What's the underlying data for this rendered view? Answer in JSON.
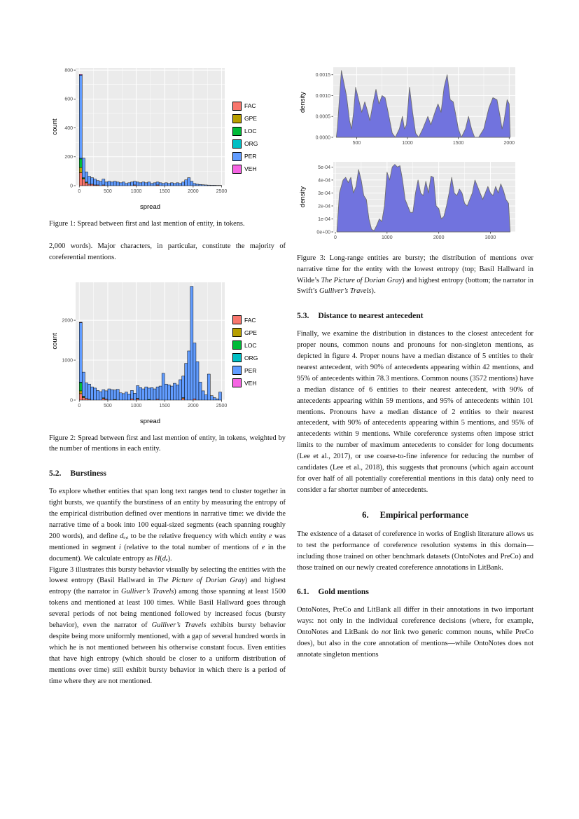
{
  "colors": {
    "FAC": "#F8766D",
    "GPE": "#B79F00",
    "LOC": "#00BA38",
    "ORG": "#00BFC4",
    "PER": "#619CFF",
    "VEH": "#F564E3",
    "panel": "#EBEBEB",
    "grid": "#FFFFFF",
    "density_fill": "#7173DE",
    "density_stroke": "#6E6E6E",
    "tick_label": "#4D4D4D",
    "axis_title": "#000000"
  },
  "captions": {
    "fig1": "Figure 1:  Spread between first and last mention of entity, in tokens.",
    "fig2": "Figure 2:  Spread between first and last mention of entity, in tokens, weighted by the number of mentions in each entity.",
    "fig3": "Figure 3:  Long-range entities are bursty; the distribution of mentions over narrative time for the entity with the lowest entropy (top; Basil Hallward in Wilde’s *The Picture of Dorian Gray*) and highest entropy (bottom; the narrator in Swift’s *Gulliver’s Travels*)."
  },
  "sections": {
    "s51_cont": "2,000 words).  Major characters, in particular, constitute the majority of coreferential mentions.",
    "s52_num": "5.2.",
    "s52_title": "Burstiness",
    "s52_p1": "To explore whether entities that span long text ranges tend to cluster together in tight bursts, we quantify the burstiness of an entity by measuring the entropy of the empirical distribution defined over mentions in narrative time: we divide the narrative time of a book into 100 equal-sized segments (each spanning roughly 200 words), and define *d*ₑ,ᵢ to be the relative frequency with which entity *e* was mentioned in segment *i* (relative to the total number of mentions of *e* in the document). We calculate entropy as *H*(*d*ₑ).",
    "s52_p2": "Figure 3 illustrates this bursty behavior visually by selecting the entities with the lowest entropy (Basil Hallward in *The Picture of Dorian Gray*) and highest entropy (the narrator in *Gulliver’s Travels*) among those spanning at least 1500 tokens and mentioned at least 100 times.  While Basil Hallward goes through several periods of not being mentioned followed by increased focus (bursty behavior), even the narrator of *Gulliver’s Travels* exhibits bursty behavior despite being more uniformly mentioned, with a gap of several hundred words in which he is not mentioned between his otherwise constant focus.  Even entities that have high entropy (which should be closer to a uniform distribution of mentions over time) still exhibit bursty behavior in which there is a period of time where they are not mentioned.",
    "s53_num": "5.3.",
    "s53_title": "Distance to nearest antecedent",
    "s53_p1": "Finally, we examine the distribution in distances to the closest antecedent for proper nouns, common nouns and pronouns for non-singleton mentions, as depicted in figure 4.  Proper nouns have a median distance of 5 entities to their nearest antecedent, with 90% of antecedents appearing within 42 mentions, and 95% of antecedents within 78.3 mentions. Common nouns (3572 mentions) have a median distance of 6 entities to their nearest antecedent, with 90% of antecedents appearing within 59 mentions, and 95% of antecedents within 101 mentions. Pronouns have a median distance of 2 entities to their nearest antecedent, with 90% of antecedents appearing within 5 mentions, and 95% of antecedents within 9 mentions. While coreference systems often impose strict limits to the number of maximum antecedents to consider for long documents (Lee et al., 2017), or use coarse-to-fine inference for reducing the number of candidates (Lee et al., 2018), this suggests that pronouns (which again account for over half of all potentially coreferential mentions in this data) only need to consider a far shorter number of antecedents.",
    "s6_num": "6.",
    "s6_title": "Empirical performance",
    "s6_p1": "The existence of a dataset of coreference in works of English literature allows us to test the performance of coreference resolution systems in this domain—including those trained on other benchmark datasets (OntoNotes and PreCo) and those trained on our newly created coreference annotations in LitBank.",
    "s61_num": "6.1.",
    "s61_title": "Gold mentions",
    "s61_p1": "OntoNotes, PreCo and LitBank all differ in their annotations in two important ways:  not only in the individual coreference decisions (where, for example, OntoNotes and LitBank do *not* link two generic common nouns, while PreCo does), but also in the core annotation of mentions—while OntoNotes does not annotate singleton mentions"
  },
  "chart_data": [
    {
      "type": "bar",
      "stacked": true,
      "title": "",
      "xlabel": "spread",
      "ylabel": "count",
      "bin_width": 50,
      "xlim": [
        -65,
        2555
      ],
      "ylim": [
        0,
        815
      ],
      "xticks": [
        0,
        500,
        1000,
        1500,
        2000,
        2500
      ],
      "yticks": [
        0,
        200,
        400,
        600,
        800
      ],
      "legend": [
        "FAC",
        "GPE",
        "LOC",
        "ORG",
        "PER",
        "VEH"
      ],
      "legend_position": "right",
      "grid": true,
      "stack_order": [
        "FAC",
        "GPE",
        "LOC",
        "ORG",
        "PER",
        "VEH"
      ],
      "series": {
        "FAC": {
          "0": 90,
          "1": 45,
          "2": 20,
          "3": 10,
          "4": 10,
          "5": 5,
          "6": 5,
          "8": 5,
          "19": 5,
          "27": 5
        },
        "GPE": {
          "0": 35,
          "1": 5,
          "2": 5
        },
        "LOC": {
          "0": 60,
          "1": 5
        },
        "ORG": {
          "0": 5
        },
        "PER": [
          575,
          135,
          70,
          55,
          45,
          40,
          30,
          30,
          40,
          25,
          30,
          25,
          30,
          25,
          20,
          25,
          15,
          20,
          25,
          25,
          25,
          20,
          25,
          20,
          25,
          15,
          20,
          20,
          20,
          15,
          20,
          15,
          20,
          15,
          20,
          15,
          25,
          40,
          55,
          30,
          15,
          10,
          8,
          6,
          5,
          4,
          3,
          3,
          2,
          2
        ],
        "VEH": {
          "0": 5
        }
      }
    },
    {
      "type": "bar",
      "stacked": true,
      "title": "",
      "xlabel": "spread",
      "ylabel": "count",
      "bin_width": 50,
      "xlim": [
        -65,
        2555
      ],
      "ylim": [
        0,
        2950
      ],
      "xticks": [
        0,
        500,
        1000,
        1500,
        2000,
        2500
      ],
      "yticks": [
        0,
        1000,
        2000
      ],
      "legend": [
        "FAC",
        "GPE",
        "LOC",
        "ORG",
        "PER",
        "VEH"
      ],
      "legend_position": "right",
      "grid": true,
      "stack_order": [
        "FAC",
        "GPE",
        "LOC",
        "ORG",
        "PER",
        "VEH"
      ],
      "series": {
        "FAC": {
          "0": 160,
          "1": 60,
          "2": 40,
          "3": 20,
          "8": 40,
          "9": 20,
          "18": 30,
          "20": 30,
          "27": 20,
          "36": 40,
          "40": 30
        },
        "GPE": {
          "0": 70,
          "1": 20,
          "12": 15,
          "36": 20
        },
        "LOC": {
          "0": 200,
          "1": 15,
          "8": 15,
          "24": 15
        },
        "ORG": {
          "0": 20,
          "20": 15
        },
        "PER": [
          1490,
          605,
          390,
          380,
          330,
          300,
          240,
          210,
          205,
          210,
          280,
          260,
          235,
          270,
          180,
          160,
          200,
          150,
          210,
          170,
          315,
          310,
          280,
          330,
          285,
          310,
          280,
          310,
          350,
          670,
          400,
          380,
          350,
          420,
          380,
          510,
          540,
          920,
          1230,
          2850,
          1400,
          960,
          450,
          230,
          130,
          650,
          110,
          60,
          30,
          200
        ],
        "VEH": {
          "0": 10
        }
      }
    },
    {
      "type": "area",
      "title": "",
      "xlabel": "",
      "ylabel": "density",
      "xlim": [
        270,
        2060
      ],
      "ylim": [
        0,
        0.00168
      ],
      "xticks": [
        500,
        1000,
        1500,
        2000
      ],
      "yticks": [
        0.0,
        0.0005,
        0.001,
        0.0015
      ],
      "ytick_labels": [
        "0.0000",
        "0.0005",
        "0.0010",
        "0.0015"
      ],
      "grid": true,
      "x": [
        300,
        310,
        350,
        400,
        430,
        450,
        470,
        490,
        520,
        550,
        580,
        610,
        630,
        660,
        690,
        720,
        750,
        780,
        810,
        850,
        880,
        920,
        950,
        970,
        990,
        1020,
        1050,
        1080,
        1110,
        1150,
        1200,
        1230,
        1270,
        1300,
        1330,
        1360,
        1390,
        1420,
        1450,
        1470,
        1500,
        1530,
        1570,
        1600,
        1630,
        1660,
        1700,
        1750,
        1800,
        1840,
        1880,
        1910,
        1930,
        1950,
        1980,
        2000,
        2010
      ],
      "y": [
        0,
        0.0002,
        0.0016,
        0.001,
        0.0004,
        0.0002,
        0.0006,
        0.0012,
        0.0009,
        0.0006,
        0.00085,
        0.0006,
        0.0004,
        0.0008,
        0.00115,
        0.0008,
        0.001,
        0.00095,
        0.0006,
        0.0001,
        0,
        0.0002,
        0.0005,
        0.0002,
        0.0003,
        0.0012,
        0.0006,
        0.0001,
        0,
        0.0002,
        0.0005,
        0.0003,
        0.0006,
        0.0008,
        0.0006,
        0.0012,
        0.0015,
        0.0009,
        0.00085,
        0.0006,
        0.0002,
        0,
        0.0002,
        0.0005,
        0.0002,
        0,
        0,
        0.0002,
        0.0007,
        0.00095,
        0.0009,
        0.0005,
        0.0002,
        0.0004,
        0.0009,
        0.0008,
        0
      ]
    },
    {
      "type": "area",
      "title": "",
      "xlabel": "",
      "ylabel": "density",
      "xlim": [
        -40,
        3480
      ],
      "ylim": [
        0,
        0.00054
      ],
      "xticks": [
        0,
        1000,
        2000,
        3000
      ],
      "yticks": [
        0,
        0.0001,
        0.0002,
        0.0003,
        0.0004,
        0.0005
      ],
      "ytick_labels": [
        "0e+00",
        "1e-04",
        "2e-04",
        "3e-04",
        "4e-04",
        "5e-04"
      ],
      "grid": true,
      "x": [
        30,
        80,
        150,
        200,
        250,
        300,
        350,
        400,
        450,
        500,
        550,
        600,
        650,
        700,
        750,
        800,
        850,
        900,
        950,
        1000,
        1050,
        1100,
        1150,
        1200,
        1250,
        1300,
        1350,
        1400,
        1450,
        1500,
        1550,
        1600,
        1650,
        1700,
        1750,
        1800,
        1850,
        1900,
        1950,
        2000,
        2050,
        2100,
        2150,
        2200,
        2250,
        2300,
        2350,
        2400,
        2450,
        2500,
        2550,
        2600,
        2650,
        2700,
        2750,
        2800,
        2850,
        2900,
        2950,
        3000,
        3050,
        3100,
        3150,
        3200,
        3250,
        3300,
        3350,
        3380
      ],
      "y": [
        0,
        0.0003,
        0.0004,
        0.00042,
        0.00038,
        0.00042,
        0.0003,
        0.00035,
        0.00048,
        0.0004,
        0.00028,
        0.00025,
        0.0001,
        2e-05,
        1e-05,
        5e-05,
        0.0001,
        8e-05,
        0.0002,
        0.00046,
        0.0004,
        0.0005,
        0.00052,
        0.0005,
        0.00051,
        0.0004,
        0.00025,
        0.0002,
        0.00015,
        0.00015,
        0.0003,
        0.0004,
        0.0003,
        0.00028,
        0.00039,
        0.0003,
        0.00043,
        0.00042,
        0.0002,
        0.00018,
        0.0001,
        0.00012,
        0.0002,
        0.0003,
        0.00042,
        0.0003,
        0.00028,
        0.00033,
        0.0003,
        0.00022,
        0.0002,
        0.00025,
        0.0003,
        0.0004,
        0.00035,
        0.0003,
        0.00025,
        0.0003,
        0.00035,
        0.0003,
        0.00028,
        0.00035,
        0.0003,
        0.00037,
        0.00032,
        0.00025,
        0.00022,
        0
      ]
    }
  ]
}
